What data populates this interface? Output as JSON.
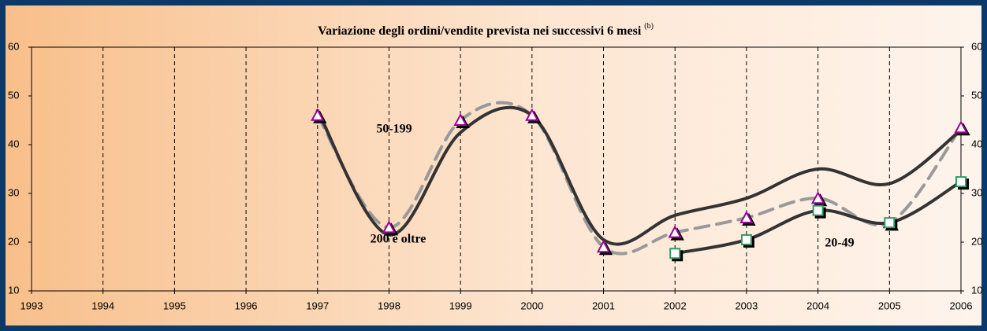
{
  "chart_data": {
    "type": "line",
    "title": "Variazione degli ordini/vendite prevista nei successivi 6 mesi",
    "title_note": "(b)",
    "x": [
      1997,
      1998,
      1999,
      2000,
      2001,
      2002,
      2003,
      2004,
      2005,
      2006
    ],
    "xlim": [
      1993,
      2006
    ],
    "xticks": [
      1993,
      1994,
      1995,
      1996,
      1997,
      1998,
      1999,
      2000,
      2001,
      2002,
      2003,
      2004,
      2005,
      2006
    ],
    "ylim": [
      10,
      60
    ],
    "yticks": [
      10,
      20,
      30,
      40,
      50,
      60
    ],
    "grid": true,
    "series": [
      {
        "name": "50-199",
        "color": "#999999",
        "dash": true,
        "marker": "triangle",
        "marker_color": "#990099",
        "values": [
          46,
          23,
          45,
          46,
          19,
          22,
          25,
          29,
          24,
          43.5
        ]
      },
      {
        "name": "200 e oltre",
        "color": "#333333",
        "dash": false,
        "marker": "none",
        "marker_color": "#333333",
        "values": [
          47,
          21.5,
          42.5,
          46,
          20.5,
          25.5,
          29,
          35,
          32,
          43
        ]
      },
      {
        "name": "20-49",
        "color": "#333333",
        "dash": false,
        "marker": "square",
        "marker_color": "#339966",
        "values": [
          null,
          null,
          null,
          null,
          null,
          17.7,
          20.5,
          26.5,
          24,
          32.4
        ]
      }
    ]
  }
}
